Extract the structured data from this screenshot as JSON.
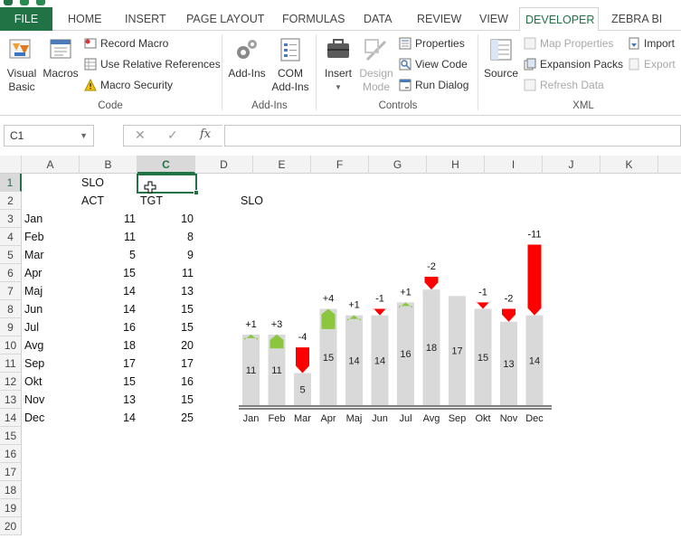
{
  "tabs": [
    "FILE",
    "HOME",
    "INSERT",
    "PAGE LAYOUT",
    "FORMULAS",
    "DATA",
    "REVIEW",
    "VIEW",
    "DEVELOPER",
    "ZEBRA BI"
  ],
  "active_tab": "DEVELOPER",
  "ribbon": {
    "code": {
      "visual_basic": "Visual\nBasic",
      "macros": "Macros",
      "record_macro": "Record Macro",
      "relative_refs": "Use Relative References",
      "macro_security": "Macro Security",
      "label": "Code"
    },
    "addins": {
      "addins": "Add-Ins",
      "com_addins": "COM\nAdd-Ins",
      "label": "Add-Ins"
    },
    "controls": {
      "insert": "Insert",
      "design_mode": "Design\nMode",
      "properties": "Properties",
      "view_code": "View Code",
      "run_dialog": "Run Dialog",
      "label": "Controls"
    },
    "xml": {
      "source": "Source",
      "map_properties": "Map Properties",
      "expansion_packs": "Expansion Packs",
      "refresh_data": "Refresh Data",
      "import": "Import",
      "export": "Export",
      "label": "XML"
    }
  },
  "formula_bar": {
    "name_box": "C1",
    "fx": "fx",
    "value": ""
  },
  "columns": [
    "A",
    "B",
    "C",
    "D",
    "E",
    "F",
    "G",
    "H",
    "I",
    "J",
    "K"
  ],
  "selected_column": "C",
  "rows": [
    "1",
    "2",
    "3",
    "4",
    "5",
    "6",
    "7",
    "8",
    "9",
    "10",
    "11",
    "12",
    "13",
    "14",
    "15",
    "16",
    "17",
    "18",
    "19",
    "20"
  ],
  "selected_row": "1",
  "sheet": {
    "b1": "SLO",
    "b2": "ACT",
    "c2": "TGT",
    "months": [
      "Jan",
      "Feb",
      "Mar",
      "Apr",
      "Maj",
      "Jun",
      "Jul",
      "Avg",
      "Sep",
      "Okt",
      "Nov",
      "Dec"
    ],
    "act": [
      11,
      11,
      5,
      15,
      14,
      14,
      16,
      18,
      17,
      15,
      13,
      14
    ],
    "tgt": [
      10,
      8,
      9,
      11,
      13,
      15,
      15,
      20,
      17,
      16,
      15,
      25
    ]
  },
  "chart_data": {
    "type": "bar",
    "title": "SLO",
    "categories": [
      "Jan",
      "Feb",
      "Mar",
      "Apr",
      "Maj",
      "Jun",
      "Jul",
      "Avg",
      "Sep",
      "Okt",
      "Nov",
      "Dec"
    ],
    "actual": [
      11,
      11,
      5,
      15,
      14,
      14,
      16,
      18,
      17,
      15,
      13,
      14
    ],
    "variance_labels": [
      "+1",
      "+3",
      "-4",
      "+4",
      "+1",
      "-1",
      "+1",
      "-2",
      "",
      "-1",
      "-2",
      "-11"
    ],
    "variance": [
      1,
      3,
      -4,
      4,
      1,
      -1,
      1,
      -2,
      0,
      -1,
      -2,
      -11
    ],
    "colors": {
      "bar": "#d9d9d9",
      "positive": "#8cc63f",
      "negative": "#ff0000",
      "axis": "#555555"
    }
  }
}
